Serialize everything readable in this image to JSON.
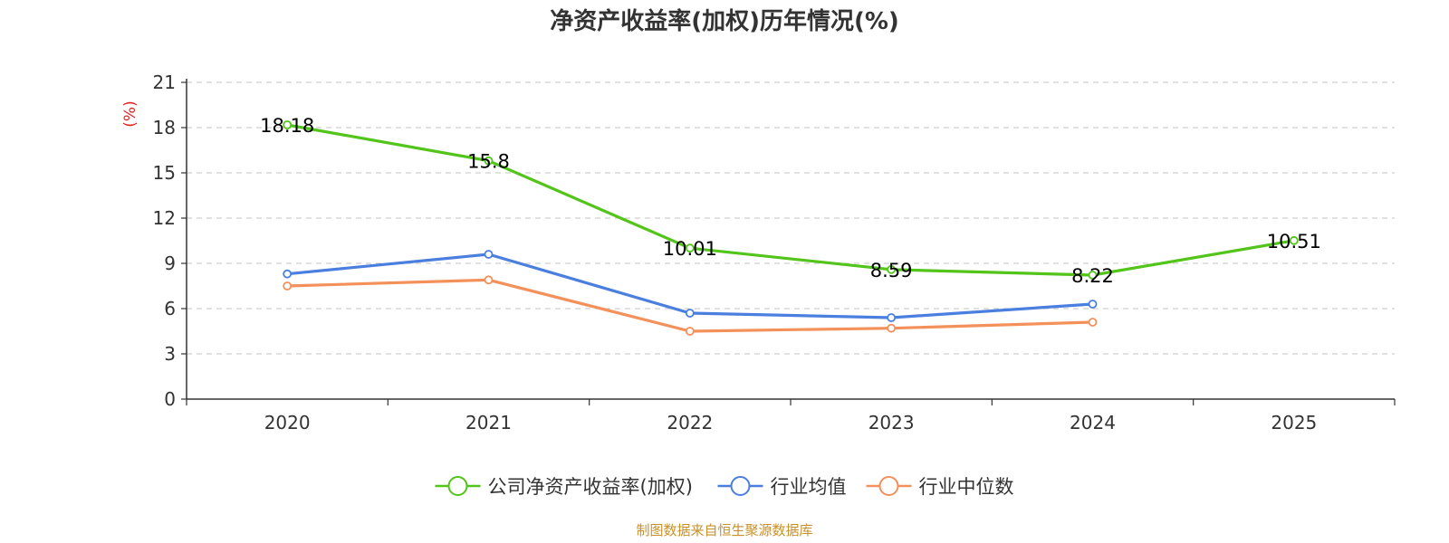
{
  "chart_data": {
    "type": "line",
    "title": "净资产收益率(加权)历年情况(%)",
    "xlabel": "",
    "ylabel": "(%)",
    "ylim": [
      0,
      21
    ],
    "yticks": [
      0,
      3,
      6,
      9,
      12,
      15,
      18,
      21
    ],
    "categories": [
      "2020",
      "2021",
      "2022",
      "2023",
      "2024",
      "2025"
    ],
    "grid": true,
    "legend_position": "bottom",
    "series": [
      {
        "name": "公司净资产收益率(加权)",
        "color": "#52c41a",
        "values": [
          18.18,
          15.8,
          10.01,
          8.59,
          8.22,
          10.51
        ],
        "labels": [
          "18.18",
          "15.8",
          "10.01",
          "8.59",
          "8.22",
          "10.51"
        ]
      },
      {
        "name": "行业均值",
        "color": "#4a7fe0",
        "values": [
          8.3,
          9.6,
          5.7,
          5.4,
          6.3,
          null
        ]
      },
      {
        "name": "行业中位数",
        "color": "#f4905a",
        "values": [
          7.5,
          7.9,
          4.5,
          4.7,
          5.1,
          null
        ]
      }
    ]
  },
  "source": {
    "text": "制图数据来自恒生聚源数据库",
    "color": "#c8902a"
  },
  "ylabel_color": "#e02020"
}
